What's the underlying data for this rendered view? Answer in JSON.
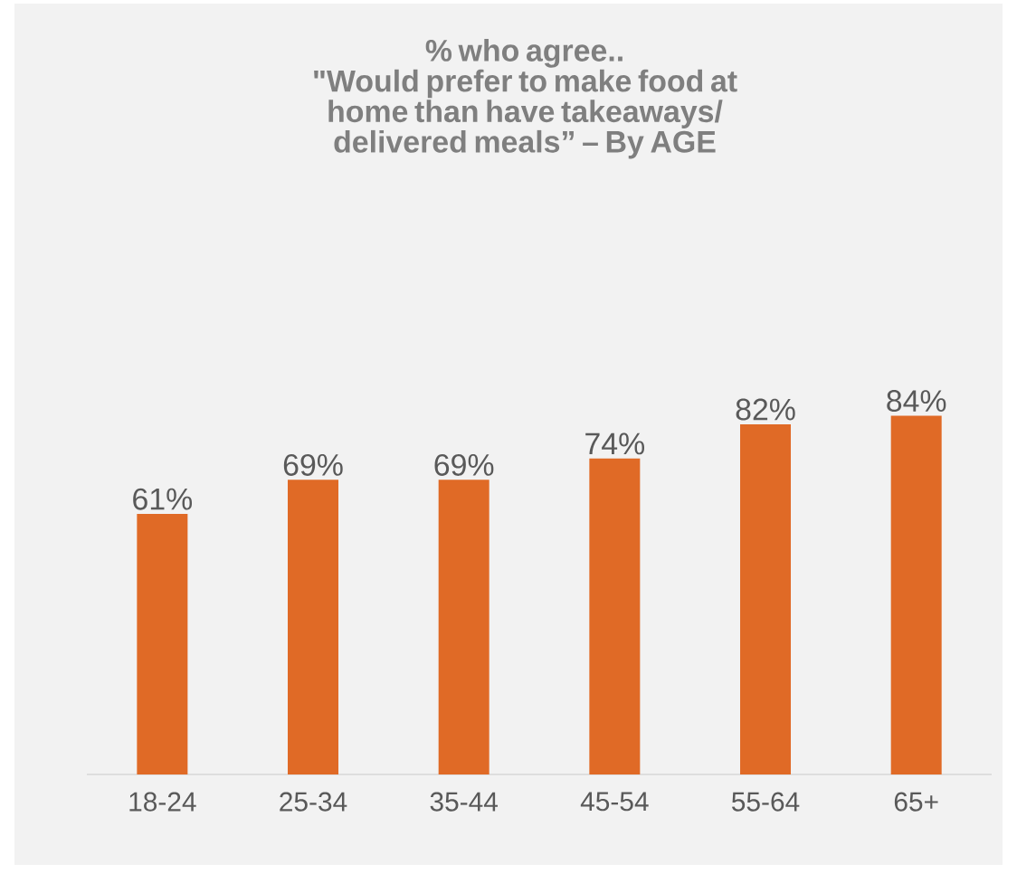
{
  "chart_data": {
    "type": "bar",
    "title": "% who agree..",
    "subtitle": "\"Would prefer to make food at home than have takeaways/ delivered meals” – By AGE",
    "categories": [
      "18-24",
      "25-34",
      "35-44",
      "45-54",
      "55-64",
      "65+"
    ],
    "values": [
      61,
      69,
      69,
      74,
      82,
      84
    ],
    "value_labels": [
      "61%",
      "69%",
      "69%",
      "74%",
      "82%",
      "84%"
    ],
    "color": "#e06a26"
  }
}
